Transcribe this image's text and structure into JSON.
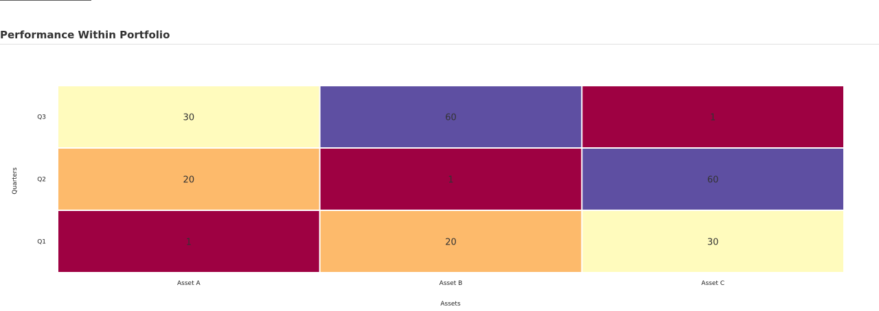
{
  "panel": {
    "title": "Performance Within Portfolio"
  },
  "chart_data": {
    "type": "heatmap",
    "title": "",
    "xlabel": "Assets",
    "ylabel": "Quarters",
    "x_categories": [
      "Asset A",
      "Asset B",
      "Asset C"
    ],
    "y_categories": [
      "Q1",
      "Q2",
      "Q3"
    ],
    "values": [
      [
        1,
        20,
        30
      ],
      [
        20,
        1,
        60
      ],
      [
        30,
        60,
        1
      ]
    ],
    "color_scale": {
      "1": "#9e0142",
      "20": "#fdba6b",
      "30": "#fffbbd",
      "60": "#5e4fa2"
    },
    "legend": "none",
    "grid": false
  }
}
